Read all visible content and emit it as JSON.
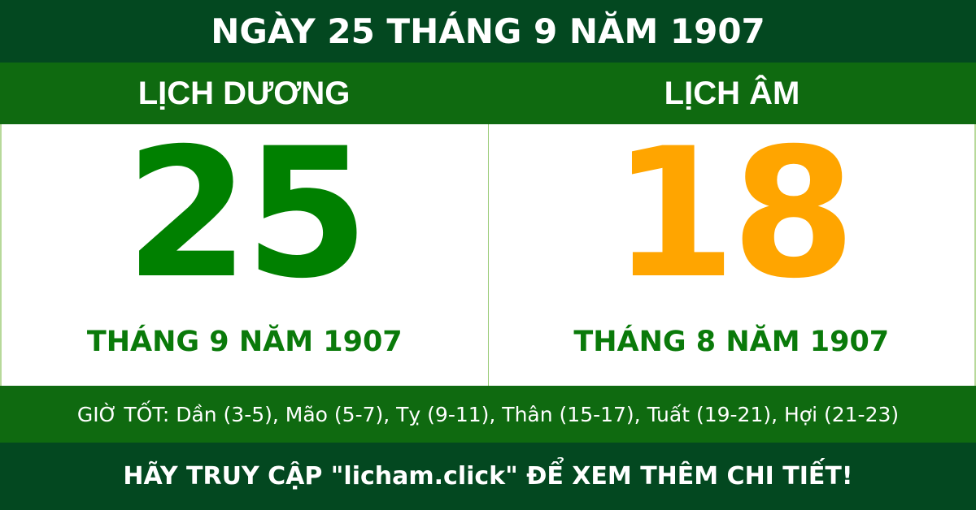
{
  "title": "NGÀY 25 THÁNG 9 NĂM 1907",
  "solar": {
    "heading": "LỊCH DƯƠNG",
    "day": "25",
    "month_year": "THÁNG 9 NĂM 1907",
    "color": "#008000"
  },
  "lunar": {
    "heading": "LỊCH ÂM",
    "day": "18",
    "month_year": "THÁNG 8 NĂM 1907",
    "color": "#ffa500"
  },
  "good_hours": "GIỜ TỐT: Dần (3-5), Mão (5-7), Tỵ (9-11), Thân (15-17), Tuất (19-21), Hợi (21-23)",
  "footer": "HÃY TRUY CẬP \"licham.click\" ĐỂ XEM THÊM CHI TIẾT!"
}
